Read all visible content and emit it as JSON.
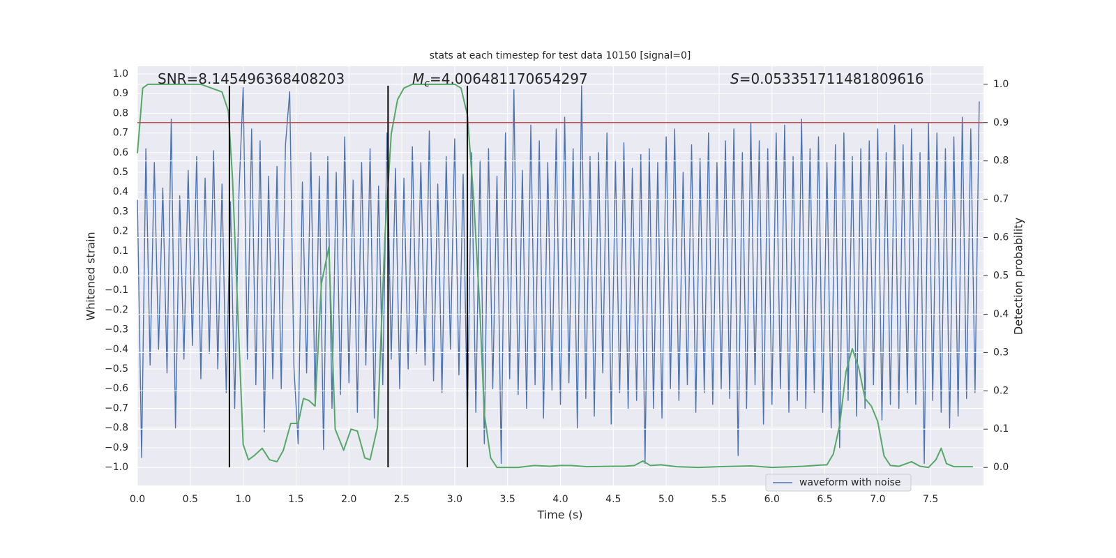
{
  "chart_data": {
    "type": "line",
    "title": "stats at each timestep for test data 10150 [signal=0]",
    "xlabel": "Time (s)",
    "ylabel": "Whitened strain",
    "y2label": "Detection probability",
    "grid": true,
    "legend": "lower right",
    "xlim": [
      0,
      8
    ],
    "xticks": [
      {
        "value": 0,
        "label": "0.0"
      },
      {
        "value": 0.5,
        "label": "0.5"
      },
      {
        "value": 1,
        "label": "1.0"
      },
      {
        "value": 1.5,
        "label": "1.5"
      },
      {
        "value": 2,
        "label": "2.0"
      },
      {
        "value": 2.5,
        "label": "2.5"
      },
      {
        "value": 3,
        "label": "3.0"
      },
      {
        "value": 3.5,
        "label": "3.5"
      },
      {
        "value": 4,
        "label": "4.0"
      },
      {
        "value": 4.5,
        "label": "4.5"
      },
      {
        "value": 5,
        "label": "5.0"
      },
      {
        "value": 5.5,
        "label": "5.5"
      },
      {
        "value": 6,
        "label": "6.0"
      },
      {
        "value": 6.5,
        "label": "6.5"
      },
      {
        "value": 7,
        "label": "7.0"
      },
      {
        "value": 7.5,
        "label": "7.5"
      }
    ],
    "ylim": [
      -1.092,
      1.039
    ],
    "yticks": [
      {
        "value": -1,
        "label": "−1.0"
      },
      {
        "value": -0.9,
        "label": "−0.9"
      },
      {
        "value": -0.8,
        "label": "−0.8"
      },
      {
        "value": -0.7,
        "label": "−0.7"
      },
      {
        "value": -0.6,
        "label": "−0.6"
      },
      {
        "value": -0.5,
        "label": "−0.5"
      },
      {
        "value": -0.4,
        "label": "−0.4"
      },
      {
        "value": -0.3,
        "label": "−0.3"
      },
      {
        "value": -0.2,
        "label": "−0.2"
      },
      {
        "value": -0.1,
        "label": "−0.1"
      },
      {
        "value": 0,
        "label": "0.0"
      },
      {
        "value": 0.1,
        "label": "0.1"
      },
      {
        "value": 0.2,
        "label": "0.2"
      },
      {
        "value": 0.3,
        "label": "0.3"
      },
      {
        "value": 0.4,
        "label": "0.4"
      },
      {
        "value": 0.5,
        "label": "0.5"
      },
      {
        "value": 0.6,
        "label": "0.6"
      },
      {
        "value": 0.7,
        "label": "0.7"
      },
      {
        "value": 0.8,
        "label": "0.8"
      },
      {
        "value": 0.9,
        "label": "0.9"
      },
      {
        "value": 1,
        "label": "1.0"
      }
    ],
    "y2lim": [
      -0.047,
      1.047
    ],
    "y2ticks": [
      {
        "value": 0,
        "label": "0.0"
      },
      {
        "value": 0.1,
        "label": "0.1"
      },
      {
        "value": 0.2,
        "label": "0.2"
      },
      {
        "value": 0.3,
        "label": "0.3"
      },
      {
        "value": 0.4,
        "label": "0.4"
      },
      {
        "value": 0.5,
        "label": "0.5"
      },
      {
        "value": 0.6,
        "label": "0.6"
      },
      {
        "value": 0.7,
        "label": "0.7"
      },
      {
        "value": 0.8,
        "label": "0.8"
      },
      {
        "value": 0.9,
        "label": "0.9"
      },
      {
        "value": 1,
        "label": "1.0"
      }
    ],
    "annotations": [
      {
        "text": "SNR=8.145496368408203"
      },
      {
        "symbol": "M",
        "subscript": "c",
        "text": "=4.006481170654297"
      },
      {
        "symbol": "S",
        "text": "=0.053351711481809616"
      }
    ],
    "series": [
      {
        "name": "waveform with noise",
        "color": "#4c72b0",
        "x": [
          0,
          0.04,
          0.08,
          0.12,
          0.16,
          0.2,
          0.24,
          0.28,
          0.32,
          0.36,
          0.4,
          0.44,
          0.48,
          0.52,
          0.56,
          0.6,
          0.64,
          0.68,
          0.72,
          0.76,
          0.8,
          0.84,
          0.88,
          0.92,
          0.96,
          1,
          1.04,
          1.08,
          1.12,
          1.16,
          1.2,
          1.24,
          1.28,
          1.32,
          1.36,
          1.4,
          1.44,
          1.48,
          1.52,
          1.56,
          1.6,
          1.64,
          1.68,
          1.72,
          1.76,
          1.8,
          1.84,
          1.88,
          1.92,
          1.96,
          2,
          2.04,
          2.08,
          2.12,
          2.16,
          2.2,
          2.24,
          2.28,
          2.32,
          2.36,
          2.4,
          2.44,
          2.48,
          2.52,
          2.56,
          2.6,
          2.64,
          2.68,
          2.72,
          2.76,
          2.8,
          2.84,
          2.88,
          2.92,
          2.96,
          3,
          3.04,
          3.08,
          3.12,
          3.16,
          3.2,
          3.24,
          3.28,
          3.32,
          3.36,
          3.4,
          3.44,
          3.48,
          3.52,
          3.56,
          3.6,
          3.64,
          3.68,
          3.72,
          3.76,
          3.8,
          3.84,
          3.88,
          3.92,
          3.96,
          4,
          4.04,
          4.08,
          4.12,
          4.16,
          4.2,
          4.24,
          4.28,
          4.32,
          4.36,
          4.4,
          4.44,
          4.48,
          4.52,
          4.56,
          4.6,
          4.64,
          4.68,
          4.72,
          4.76,
          4.8,
          4.84,
          4.88,
          4.92,
          4.96,
          5,
          5.04,
          5.08,
          5.12,
          5.16,
          5.2,
          5.24,
          5.28,
          5.32,
          5.36,
          5.4,
          5.44,
          5.48,
          5.52,
          5.56,
          5.6,
          5.64,
          5.68,
          5.72,
          5.76,
          5.8,
          5.84,
          5.88,
          5.92,
          5.96,
          6,
          6.04,
          6.08,
          6.12,
          6.16,
          6.2,
          6.24,
          6.28,
          6.32,
          6.36,
          6.4,
          6.44,
          6.48,
          6.52,
          6.56,
          6.6,
          6.64,
          6.68,
          6.72,
          6.76,
          6.8,
          6.84,
          6.88,
          6.92,
          6.96,
          7,
          7.04,
          7.08,
          7.12,
          7.16,
          7.2,
          7.24,
          7.28,
          7.32,
          7.36,
          7.4,
          7.44,
          7.48,
          7.52,
          7.56,
          7.6,
          7.64,
          7.68,
          7.72,
          7.76,
          7.8,
          7.84,
          7.88,
          7.92,
          7.96
        ],
        "values": [
          0.36,
          -0.95,
          0.62,
          -0.48,
          0.55,
          -0.4,
          0.42,
          -0.52,
          0.77,
          -0.8,
          0.38,
          -0.45,
          0.51,
          -0.38,
          0.58,
          -0.55,
          0.47,
          -0.42,
          0.61,
          -0.5,
          0.44,
          -0.62,
          0.35,
          -0.7,
          0.39,
          0.93,
          -0.45,
          0.72,
          -0.58,
          0.66,
          -0.82,
          0.48,
          -0.55,
          0.53,
          -0.6,
          0.64,
          0.91,
          -0.49,
          -0.88,
          0.45,
          -0.52,
          0.6,
          -0.66,
          0.48,
          -0.91,
          0.58,
          -0.7,
          0.5,
          -0.63,
          0.68,
          -0.57,
          0.46,
          -0.72,
          0.55,
          -0.48,
          0.62,
          -0.75,
          0.43,
          -0.58,
          0.7,
          -0.45,
          0.52,
          -0.6,
          0.47,
          -0.5,
          0.63,
          -0.42,
          0.55,
          -0.48,
          0.71,
          -0.56,
          0.44,
          -0.62,
          0.58,
          -0.4,
          0.67,
          -0.53,
          0.49,
          -0.78,
          0.6,
          -0.72,
          0.56,
          -0.88,
          0.62,
          -0.6,
          0.48,
          -0.98,
          0.7,
          -0.55,
          0.92,
          -0.63,
          0.51,
          -0.7,
          0.74,
          -0.58,
          0.66,
          -0.75,
          0.55,
          -0.61,
          0.72,
          -0.68,
          0.78,
          -0.57,
          0.62,
          -0.8,
          0.94,
          -0.65,
          0.58,
          -0.74,
          0.6,
          -0.52,
          0.7,
          -0.78,
          0.56,
          -0.62,
          0.65,
          -0.7,
          0.52,
          -0.66,
          0.59,
          -0.98,
          0.62,
          -0.7,
          0.55,
          -0.75,
          0.68,
          -0.6,
          0.72,
          -0.66,
          0.5,
          -0.58,
          0.64,
          -0.72,
          0.57,
          -0.62,
          0.7,
          -0.68,
          0.55,
          -0.6,
          0.66,
          -0.65,
          0.72,
          -0.94,
          0.6,
          -0.7,
          0.75,
          -0.58,
          0.66,
          -0.78,
          0.62,
          -0.68,
          0.7,
          -0.6,
          0.74,
          -0.72,
          0.58,
          -0.66,
          0.77,
          -0.7,
          0.62,
          -0.62,
          0.68,
          -0.72,
          0.55,
          -0.8,
          0.64,
          -0.9,
          0.7,
          -0.66,
          0.58,
          -0.74,
          0.62,
          -0.7,
          0.66,
          -0.58,
          0.72,
          -0.76,
          0.6,
          -0.68,
          0.74,
          -0.7,
          0.64,
          -0.62,
          0.72,
          -0.68,
          0.6,
          -0.98,
          0.75,
          -0.66,
          0.7,
          -0.72,
          0.62,
          -0.8,
          0.68,
          -0.74,
          0.78,
          -0.65,
          0.72,
          -0.62,
          0.86
        ]
      },
      {
        "color": "#55a868",
        "axis": "y2",
        "x": [
          0,
          0.05,
          0.1,
          0.2,
          0.4,
          0.6,
          0.7,
          0.8,
          0.86,
          0.9,
          0.95,
          1,
          1.05,
          1.1,
          1.18,
          1.25,
          1.32,
          1.38,
          1.45,
          1.52,
          1.57,
          1.62,
          1.68,
          1.74,
          1.81,
          1.87,
          1.95,
          2.02,
          2.08,
          2.15,
          2.2,
          2.27,
          2.34,
          2.4,
          2.46,
          2.52,
          2.6,
          2.8,
          3,
          3.06,
          3.12,
          3.18,
          3.24,
          3.28,
          3.34,
          3.4,
          3.5,
          3.6,
          3.75,
          3.9,
          4,
          4.1,
          4.25,
          4.5,
          4.6,
          4.7,
          4.78,
          4.85,
          4.95,
          5.1,
          5.3,
          5.5,
          5.8,
          6,
          6.3,
          6.45,
          6.52,
          6.58,
          6.64,
          6.7,
          6.76,
          6.82,
          6.88,
          6.94,
          7,
          7.06,
          7.12,
          7.2,
          7.32,
          7.4,
          7.48,
          7.55,
          7.6,
          7.65,
          7.72,
          7.9
        ],
        "values": [
          0.82,
          0.99,
          1,
          1,
          1,
          1,
          0.99,
          0.98,
          0.93,
          0.75,
          0.4,
          0.06,
          0.02,
          0.03,
          0.05,
          0.02,
          0.015,
          0.045,
          0.115,
          0.115,
          0.18,
          0.175,
          0.16,
          0.48,
          0.575,
          0.1,
          0.045,
          0.1,
          0.095,
          0.025,
          0.02,
          0.105,
          0.6,
          0.87,
          0.96,
          0.99,
          1,
          1,
          1,
          0.99,
          0.92,
          0.7,
          0.4,
          0.14,
          0.025,
          0,
          0,
          0,
          0.005,
          0.003,
          0.005,
          0.005,
          0.002,
          0.003,
          0.003,
          0.005,
          0.017,
          0.005,
          0.007,
          0.002,
          0,
          0.002,
          0.004,
          0,
          0.003,
          0.006,
          0.007,
          0.035,
          0.11,
          0.25,
          0.31,
          0.26,
          0.18,
          0.16,
          0.12,
          0.03,
          0.005,
          0.003,
          0.015,
          0.003,
          0,
          0.02,
          0.05,
          0.01,
          0.002,
          0.002
        ]
      }
    ],
    "hlines": [
      {
        "y": 0.9,
        "color": "#c44e52",
        "axis": "y2"
      }
    ],
    "vlines": {
      "x": [
        0.87,
        2.37,
        3.12
      ],
      "ymin": -1.0,
      "ymax": 0.94,
      "color": "#000000"
    }
  }
}
